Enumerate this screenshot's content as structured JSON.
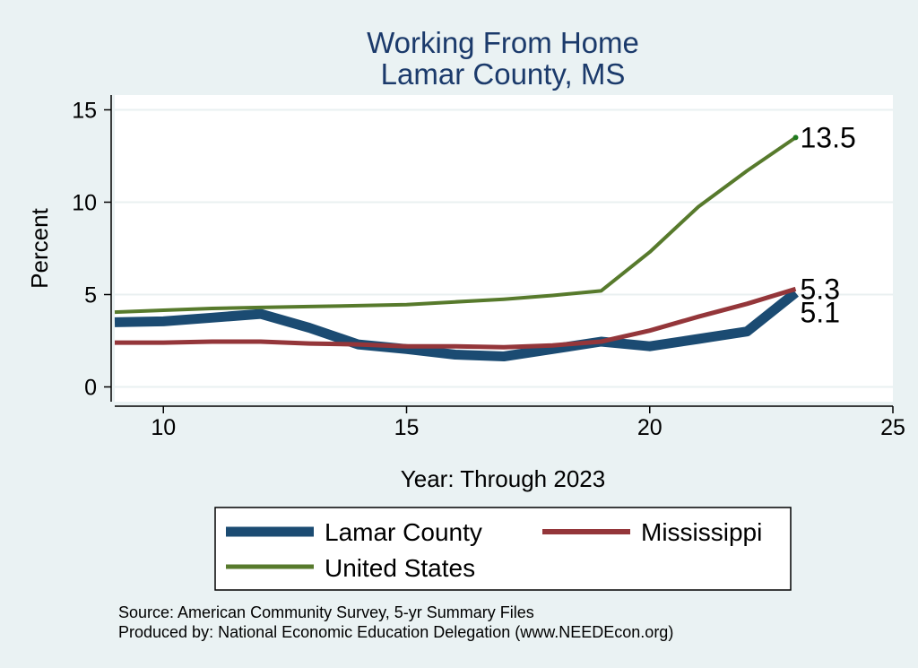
{
  "chart_data": {
    "type": "line",
    "title": [
      "Working From Home",
      "Lamar County, MS"
    ],
    "xlabel": "Year: Through 2023",
    "ylabel": "Percent",
    "xlim": [
      9,
      25
    ],
    "ylim": [
      -0.8,
      15.8
    ],
    "xticks": [
      10,
      15,
      20,
      25
    ],
    "yticks": [
      0,
      5,
      10,
      15
    ],
    "grid": true,
    "series": [
      {
        "name": "Lamar County",
        "color": "#1b4b72",
        "x": [
          9,
          10,
          11,
          12,
          13,
          14,
          15,
          16,
          17,
          18,
          19,
          20,
          21,
          22,
          23
        ],
        "values": [
          3.5,
          3.55,
          3.75,
          3.95,
          3.2,
          2.3,
          2.05,
          1.75,
          1.65,
          2.05,
          2.45,
          2.2,
          2.6,
          3.0,
          5.1
        ],
        "end_label": "5.1"
      },
      {
        "name": "Mississippi",
        "color": "#94363a",
        "x": [
          9,
          10,
          11,
          12,
          13,
          14,
          15,
          16,
          17,
          18,
          19,
          20,
          21,
          22,
          23
        ],
        "values": [
          2.4,
          2.4,
          2.45,
          2.45,
          2.35,
          2.3,
          2.2,
          2.2,
          2.15,
          2.25,
          2.45,
          3.05,
          3.8,
          4.5,
          5.3
        ],
        "end_label": "5.3"
      },
      {
        "name": "United States",
        "color": "#577a2c",
        "x": [
          9,
          10,
          11,
          12,
          13,
          14,
          15,
          16,
          17,
          18,
          19,
          20,
          21,
          22,
          23
        ],
        "values": [
          4.05,
          4.15,
          4.25,
          4.3,
          4.35,
          4.4,
          4.45,
          4.6,
          4.75,
          4.95,
          5.2,
          7.3,
          9.75,
          11.7,
          13.5
        ],
        "end_label": "13.5"
      }
    ],
    "legend": {
      "placement": "bottom",
      "entries": [
        "Lamar County",
        "Mississippi",
        "United States"
      ]
    },
    "notes": [
      "Source: American Community Survey, 5-yr Summary Files",
      "Produced by: National Economic Education Delegation (www.NEEDEcon.org)"
    ]
  }
}
